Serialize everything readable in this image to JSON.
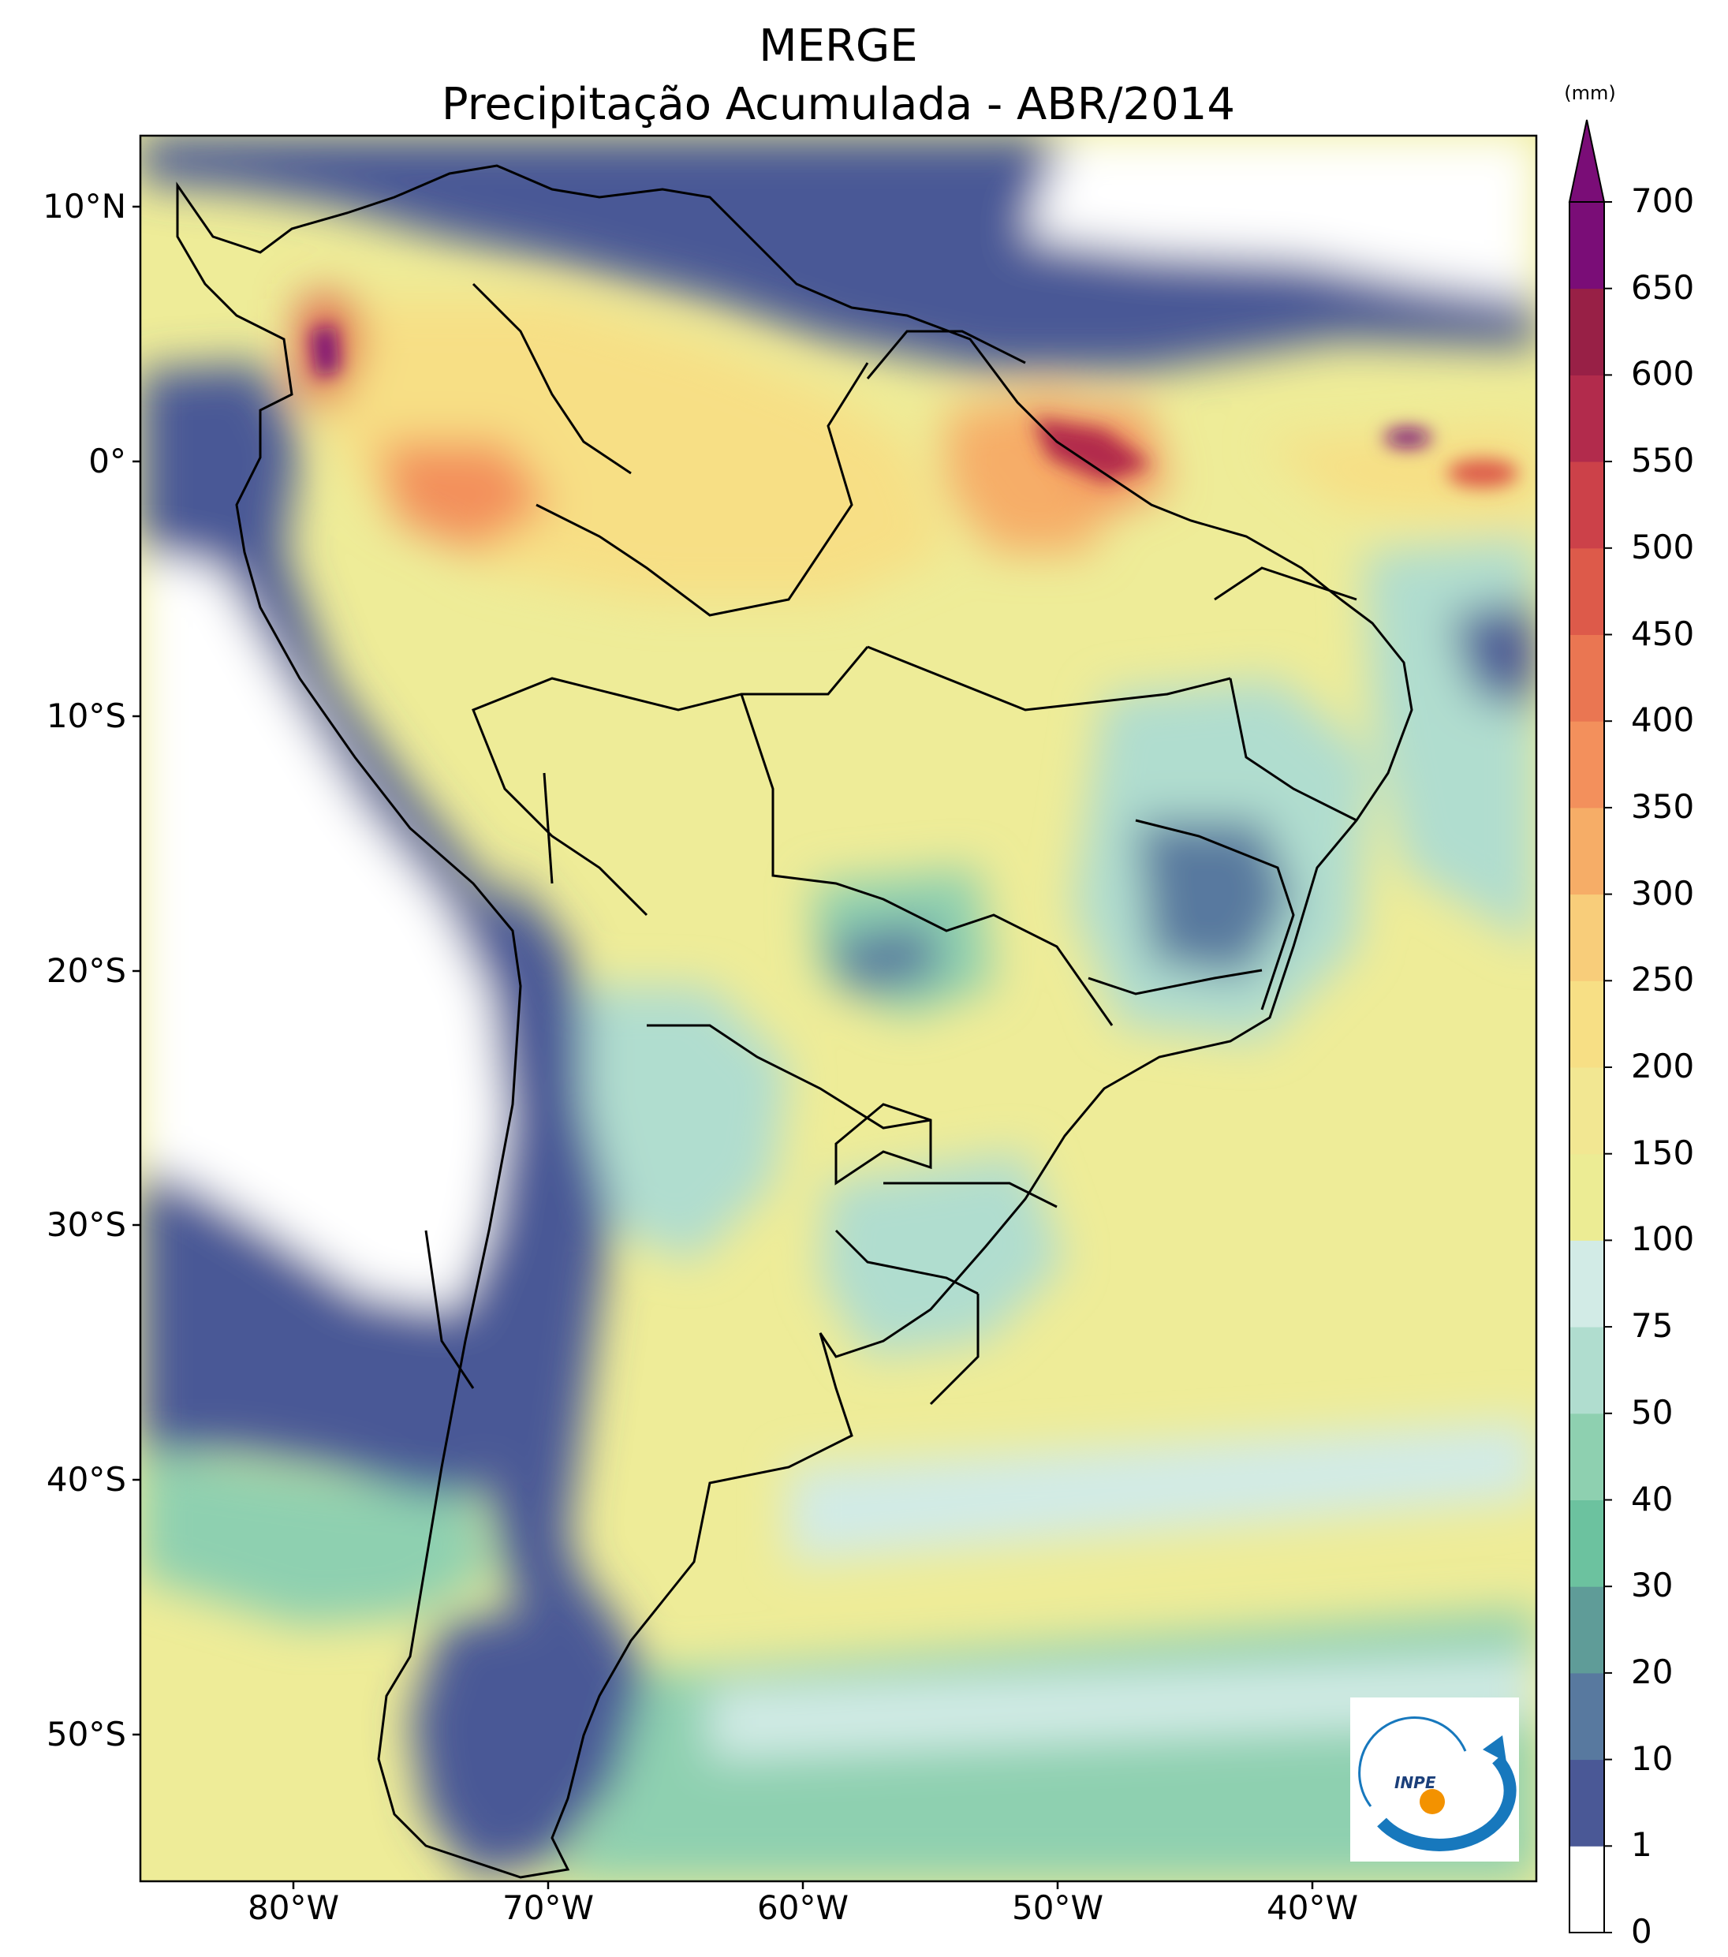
{
  "title": {
    "line1": "MERGE",
    "line2": "Precipitação Acumulada - ABR/2014"
  },
  "map": {
    "lon_ticks": [
      "80°W",
      "70°W",
      "60°W",
      "50°W",
      "40°W"
    ],
    "lat_ticks": [
      "10°N",
      "0°",
      "10°S",
      "20°S",
      "30°S",
      "40°S",
      "50°S"
    ]
  },
  "colorbar": {
    "unit": "(mm)",
    "levels": [
      "0",
      "1",
      "10",
      "20",
      "30",
      "40",
      "50",
      "75",
      "100",
      "150",
      "200",
      "250",
      "300",
      "350",
      "400",
      "450",
      "500",
      "550",
      "600",
      "650",
      "700"
    ],
    "colors": [
      "#ffffff",
      "#4a5896",
      "#58799f",
      "#5f9c98",
      "#6cc29f",
      "#8ed0b0",
      "#b0ddcf",
      "#d2ebe6",
      "#ecec94",
      "#f2e792",
      "#f7df85",
      "#f8cd7a",
      "#f6ad67",
      "#f3905c",
      "#ea7652",
      "#dd5a4a",
      "#cc4149",
      "#b22b4c",
      "#982046",
      "#7a0d77"
    ],
    "extend_color": "#7a0d77"
  },
  "logo": {
    "text": "INPE"
  }
}
